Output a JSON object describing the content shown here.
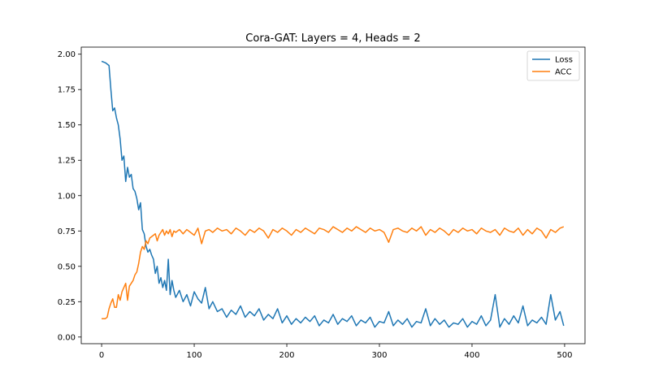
{
  "chart_data": {
    "type": "line",
    "title": "Cora-GAT: Layers = 4, Heads = 2",
    "xlabel": "",
    "ylabel": "",
    "xlim": [
      -22,
      522
    ],
    "ylim": [
      -0.047,
      2.05
    ],
    "xticks": [
      0,
      100,
      200,
      300,
      400,
      500
    ],
    "xtick_labels": [
      "0",
      "100",
      "200",
      "300",
      "400",
      "500"
    ],
    "yticks": [
      0.0,
      0.25,
      0.5,
      0.75,
      1.0,
      1.25,
      1.5,
      1.75,
      2.0
    ],
    "ytick_labels": [
      "0.00",
      "0.25",
      "0.50",
      "0.75",
      "1.00",
      "1.25",
      "1.50",
      "1.75",
      "2.00"
    ],
    "grid": false,
    "legend_position": "top-right",
    "series": [
      {
        "name": "Loss",
        "color": "#1f77b4",
        "x": [
          0,
          4,
          8,
          10,
          12,
          14,
          16,
          18,
          20,
          22,
          24,
          26,
          28,
          30,
          32,
          34,
          36,
          38,
          40,
          42,
          44,
          46,
          48,
          50,
          52,
          54,
          56,
          58,
          60,
          62,
          64,
          66,
          68,
          70,
          72,
          74,
          76,
          78,
          80,
          84,
          88,
          92,
          96,
          100,
          104,
          108,
          112,
          116,
          120,
          125,
          130,
          135,
          140,
          145,
          150,
          155,
          160,
          165,
          170,
          175,
          180,
          185,
          190,
          195,
          200,
          205,
          210,
          215,
          220,
          225,
          230,
          235,
          240,
          245,
          250,
          255,
          260,
          265,
          270,
          275,
          280,
          285,
          290,
          295,
          300,
          305,
          310,
          315,
          320,
          325,
          330,
          335,
          340,
          345,
          350,
          355,
          360,
          365,
          370,
          375,
          380,
          385,
          390,
          395,
          400,
          405,
          410,
          415,
          420,
          425,
          430,
          435,
          440,
          445,
          450,
          455,
          460,
          465,
          470,
          475,
          480,
          485,
          490,
          495,
          499
        ],
        "values": [
          1.95,
          1.94,
          1.92,
          1.75,
          1.6,
          1.62,
          1.55,
          1.5,
          1.4,
          1.25,
          1.28,
          1.1,
          1.2,
          1.13,
          1.15,
          1.05,
          1.03,
          0.98,
          0.9,
          0.95,
          0.76,
          0.73,
          0.64,
          0.6,
          0.62,
          0.58,
          0.55,
          0.45,
          0.5,
          0.38,
          0.42,
          0.35,
          0.4,
          0.33,
          0.55,
          0.3,
          0.4,
          0.33,
          0.28,
          0.33,
          0.25,
          0.3,
          0.22,
          0.32,
          0.27,
          0.24,
          0.35,
          0.2,
          0.25,
          0.18,
          0.2,
          0.14,
          0.19,
          0.16,
          0.22,
          0.14,
          0.18,
          0.15,
          0.2,
          0.12,
          0.16,
          0.13,
          0.2,
          0.1,
          0.15,
          0.09,
          0.13,
          0.1,
          0.14,
          0.11,
          0.15,
          0.08,
          0.12,
          0.1,
          0.16,
          0.09,
          0.13,
          0.11,
          0.15,
          0.08,
          0.12,
          0.1,
          0.14,
          0.07,
          0.11,
          0.1,
          0.18,
          0.08,
          0.12,
          0.09,
          0.13,
          0.07,
          0.11,
          0.1,
          0.2,
          0.08,
          0.13,
          0.09,
          0.12,
          0.07,
          0.1,
          0.09,
          0.13,
          0.07,
          0.11,
          0.09,
          0.15,
          0.08,
          0.12,
          0.3,
          0.07,
          0.13,
          0.09,
          0.15,
          0.1,
          0.22,
          0.08,
          0.12,
          0.1,
          0.14,
          0.09,
          0.3,
          0.12,
          0.18,
          0.08
        ]
      },
      {
        "name": "ACC",
        "color": "#ff7f0e",
        "x": [
          0,
          4,
          6,
          8,
          10,
          12,
          14,
          16,
          18,
          20,
          22,
          24,
          26,
          28,
          30,
          32,
          34,
          36,
          38,
          40,
          42,
          44,
          46,
          48,
          50,
          52,
          54,
          56,
          58,
          60,
          62,
          64,
          66,
          68,
          70,
          72,
          74,
          76,
          78,
          80,
          84,
          88,
          92,
          96,
          100,
          104,
          108,
          112,
          116,
          120,
          125,
          130,
          135,
          140,
          145,
          150,
          155,
          160,
          165,
          170,
          175,
          180,
          185,
          190,
          195,
          200,
          205,
          210,
          215,
          220,
          225,
          230,
          235,
          240,
          245,
          250,
          255,
          260,
          265,
          270,
          275,
          280,
          285,
          290,
          295,
          300,
          305,
          310,
          315,
          320,
          325,
          330,
          335,
          340,
          345,
          350,
          355,
          360,
          365,
          370,
          375,
          380,
          385,
          390,
          395,
          400,
          405,
          410,
          415,
          420,
          425,
          430,
          435,
          440,
          445,
          450,
          455,
          460,
          465,
          470,
          475,
          480,
          485,
          490,
          495,
          499
        ],
        "values": [
          0.13,
          0.13,
          0.14,
          0.2,
          0.24,
          0.27,
          0.21,
          0.21,
          0.3,
          0.26,
          0.32,
          0.35,
          0.38,
          0.26,
          0.36,
          0.38,
          0.4,
          0.44,
          0.46,
          0.52,
          0.6,
          0.64,
          0.62,
          0.68,
          0.66,
          0.7,
          0.71,
          0.72,
          0.73,
          0.68,
          0.72,
          0.74,
          0.76,
          0.72,
          0.75,
          0.73,
          0.76,
          0.71,
          0.75,
          0.74,
          0.76,
          0.73,
          0.76,
          0.74,
          0.72,
          0.77,
          0.66,
          0.75,
          0.76,
          0.74,
          0.77,
          0.75,
          0.76,
          0.73,
          0.77,
          0.75,
          0.72,
          0.76,
          0.74,
          0.77,
          0.75,
          0.7,
          0.76,
          0.74,
          0.77,
          0.75,
          0.72,
          0.76,
          0.74,
          0.77,
          0.75,
          0.73,
          0.77,
          0.76,
          0.74,
          0.78,
          0.76,
          0.74,
          0.77,
          0.75,
          0.78,
          0.76,
          0.74,
          0.77,
          0.75,
          0.76,
          0.74,
          0.67,
          0.76,
          0.77,
          0.75,
          0.74,
          0.77,
          0.75,
          0.78,
          0.72,
          0.76,
          0.74,
          0.77,
          0.75,
          0.72,
          0.76,
          0.74,
          0.77,
          0.75,
          0.76,
          0.73,
          0.77,
          0.75,
          0.74,
          0.76,
          0.72,
          0.77,
          0.75,
          0.74,
          0.77,
          0.72,
          0.76,
          0.73,
          0.77,
          0.75,
          0.7,
          0.76,
          0.74,
          0.77,
          0.78
        ]
      }
    ]
  }
}
